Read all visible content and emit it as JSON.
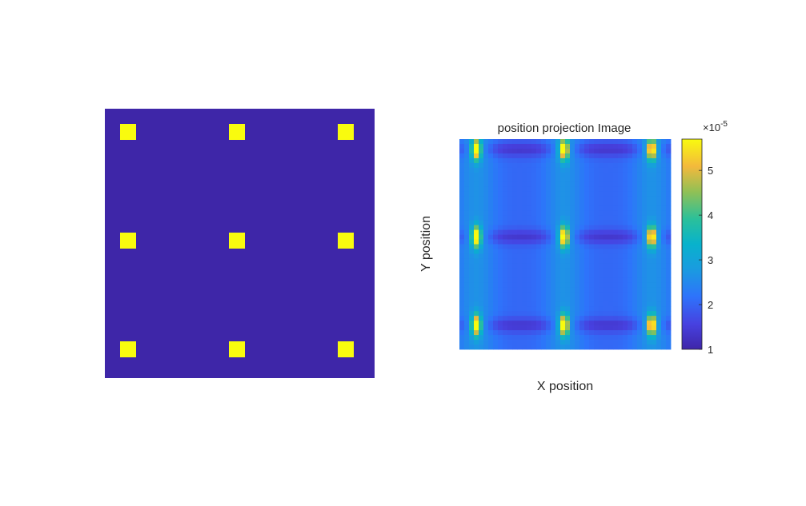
{
  "chart_data": [
    {
      "type": "heatmap",
      "title": "",
      "xlabel": "",
      "ylabel": "",
      "grid": false,
      "colormap": "parula",
      "value_range": [
        0,
        1
      ],
      "description_of_values": "binary mask: 3x3 grid of bright squares on dark background",
      "grid_size": [
        3,
        3
      ],
      "high_value": 1,
      "low_value": 0,
      "colors": {
        "low": "#3e26a8",
        "high": "#f9fb0e"
      }
    },
    {
      "type": "heatmap",
      "title": "position projection Image",
      "xlabel": "X position",
      "ylabel": "Y position",
      "grid": false,
      "colormap": "parula",
      "peak_grid_size": [
        3,
        3
      ],
      "colorbar": {
        "min": 1,
        "max": 5.7,
        "ticks": [
          1,
          2,
          3,
          4,
          5
        ],
        "tick_labels": [
          "1",
          "2",
          "3",
          "4",
          "5"
        ],
        "exponent_label": "×10",
        "exponent_value": "-5",
        "position": "right"
      }
    }
  ]
}
